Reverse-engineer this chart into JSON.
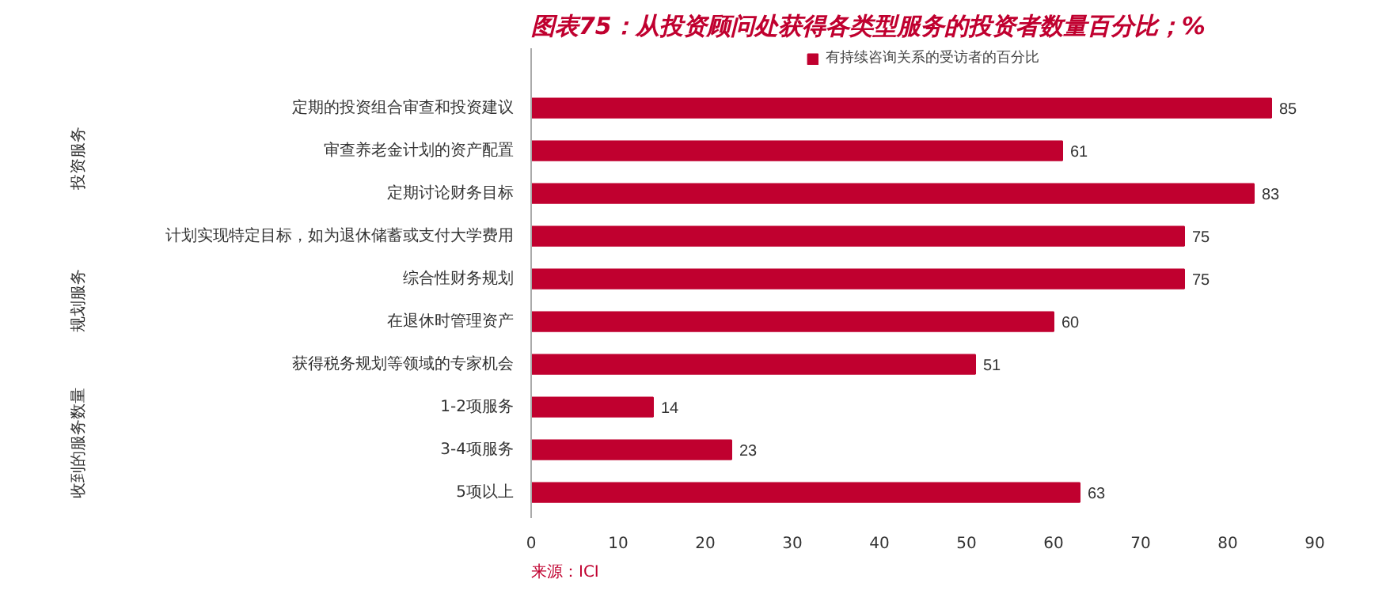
{
  "chart_data": {
    "type": "bar",
    "orientation": "horizontal",
    "title": "图表75：从投资顾问处获得各类型服务的投资者数量百分比；%",
    "categories": [
      "定期的投资组合审查和投资建议",
      "审查养老金计划的资产配置",
      "定期讨论财务目标",
      "计划实现特定目标，如为退休储蓄或支付大学费用",
      "综合性财务规划",
      "在退休时管理资产",
      "获得税务规划等领域的专家机会",
      "1-2项服务",
      "3-4项服务",
      "5项以上"
    ],
    "series": [
      {
        "name": "有持续咨询关系的受访者的百分比",
        "color": "#c0002f",
        "values": [
          85,
          61,
          83,
          75,
          75,
          60,
          51,
          14,
          23,
          63
        ]
      }
    ],
    "xlim": [
      0,
      90
    ],
    "xticks": [
      0,
      10,
      20,
      30,
      40,
      50,
      60,
      70,
      80,
      90
    ],
    "data_labels": true,
    "grid": false,
    "legend": "top",
    "annotations": [
      "投资服务",
      "规划服务",
      "收到的服务数量",
      "来源：ICI"
    ]
  }
}
